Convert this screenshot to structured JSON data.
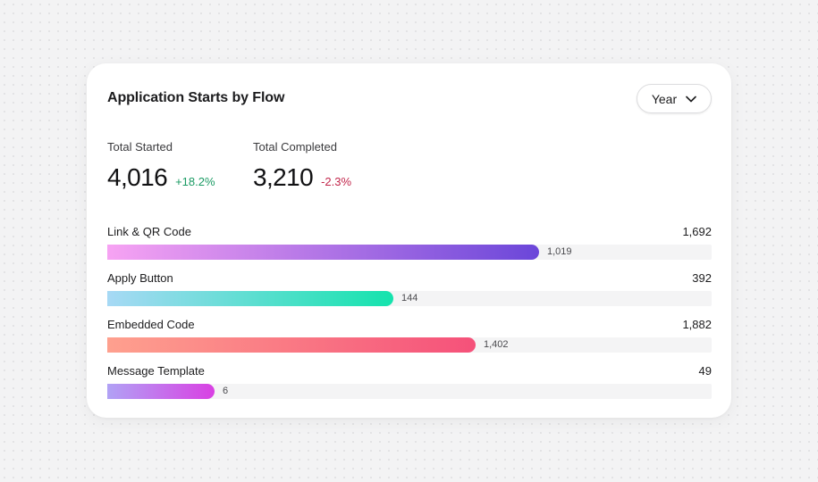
{
  "title": "Application Starts by Flow",
  "period": {
    "label": "Year",
    "icon": "chevron-down-icon"
  },
  "kpis": [
    {
      "label": "Total Started",
      "value": "4,016",
      "change": "+18.2%",
      "direction": "up"
    },
    {
      "label": "Total Completed",
      "value": "3,210",
      "change": "-2.3%",
      "direction": "down"
    }
  ],
  "colors": {
    "positive": "#1a9a63",
    "negative": "#c2264b",
    "track": "#f4f4f5"
  },
  "chart_data": {
    "type": "bar",
    "orientation": "horizontal",
    "categories": [
      "Link & QR Code",
      "Apply Button",
      "Embedded Code",
      "Message Template"
    ],
    "totals": [
      "1,692",
      "392",
      "1,882",
      "49"
    ],
    "value_labels": [
      "1,019",
      "144",
      "1,402",
      "6"
    ],
    "values": [
      1019,
      144,
      1402,
      6
    ],
    "max_values": [
      1692,
      392,
      1882,
      49
    ],
    "fill_fraction": [
      0.714,
      0.473,
      0.609,
      0.178
    ],
    "gradients": [
      [
        "#f7a3f3",
        "#6b46d9"
      ],
      [
        "#a7d9f5",
        "#14e3ad"
      ],
      [
        "#fea08e",
        "#f5517a"
      ],
      [
        "#b1a2f5",
        "#d940e3"
      ]
    ]
  }
}
